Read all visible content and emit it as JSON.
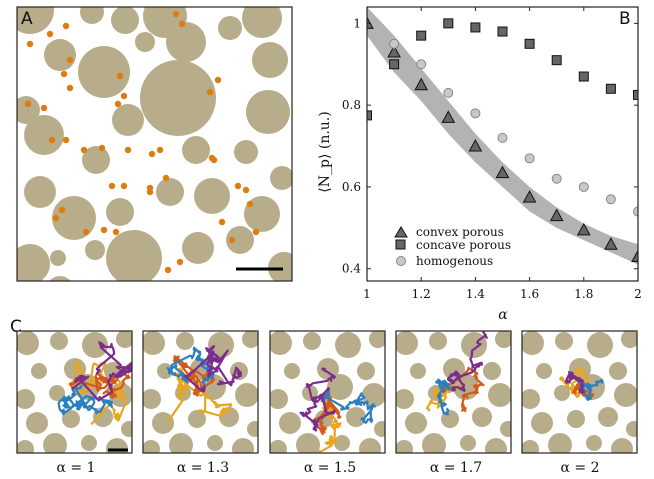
{
  "colors": {
    "particle": "#b8ad8a",
    "tracer": "#e07b10",
    "band": "#b3b3b3",
    "concave": "#666666",
    "homog": "#c8c8c8",
    "traj": [
      "#e8a51f",
      "#d45a1a",
      "#2a7fc0",
      "#7b2d8e"
    ]
  },
  "panel_labels": {
    "a": "A",
    "b": "B",
    "c": "C"
  },
  "chart_data": {
    "type": "scatter",
    "title": "",
    "xlabel": "α",
    "ylabel": "⟨N_p⟩ (n.u.)",
    "xlim": [
      1,
      2
    ],
    "ylim": [
      0.37,
      1.04
    ],
    "xticks": [
      1,
      1.2,
      1.4,
      1.6,
      1.8,
      2
    ],
    "xtick_labels": [
      "1",
      "1.2",
      "1.4",
      "1.6",
      "1.8",
      "2"
    ],
    "yticks": [
      0.4,
      0.6,
      0.8,
      1
    ],
    "ytick_labels": [
      "0.4",
      "0.6",
      "0.8",
      "1"
    ],
    "legend_position": "bottom-left",
    "band": {
      "x": [
        1,
        1.1,
        1.2,
        1.3,
        1.4,
        1.5,
        1.6,
        1.7,
        1.8,
        1.9,
        2
      ],
      "upper": [
        1.04,
        0.97,
        0.89,
        0.81,
        0.73,
        0.66,
        0.6,
        0.55,
        0.51,
        0.48,
        0.46
      ],
      "lower": [
        0.97,
        0.88,
        0.81,
        0.73,
        0.66,
        0.6,
        0.54,
        0.5,
        0.47,
        0.44,
        0.41
      ]
    },
    "series": [
      {
        "name": "convex porous",
        "marker": "triangle",
        "x": [
          1,
          1.1,
          1.2,
          1.3,
          1.4,
          1.5,
          1.6,
          1.7,
          1.8,
          1.9,
          2
        ],
        "y": [
          1.0,
          0.93,
          0.85,
          0.77,
          0.7,
          0.635,
          0.575,
          0.53,
          0.495,
          0.46,
          0.43
        ]
      },
      {
        "name": "concave porous",
        "marker": "square",
        "x": [
          1,
          1.1,
          1.2,
          1.3,
          1.4,
          1.5,
          1.6,
          1.7,
          1.8,
          1.9,
          2
        ],
        "y": [
          0.775,
          0.9,
          0.97,
          1.0,
          0.99,
          0.98,
          0.95,
          0.91,
          0.87,
          0.84,
          0.825
        ]
      },
      {
        "name": "homogenous",
        "marker": "circle",
        "x": [
          1.1,
          1.2,
          1.3,
          1.4,
          1.5,
          1.6,
          1.7,
          1.8,
          1.9,
          2
        ],
        "y": [
          0.95,
          0.9,
          0.83,
          0.78,
          0.72,
          0.67,
          0.62,
          0.6,
          0.57,
          0.54
        ]
      }
    ]
  },
  "trajectories": [
    {
      "caption": "α = 1"
    },
    {
      "caption": "α = 1.3"
    },
    {
      "caption": "α = 1.5"
    },
    {
      "caption": "α = 1.7"
    },
    {
      "caption": "α = 2"
    }
  ]
}
